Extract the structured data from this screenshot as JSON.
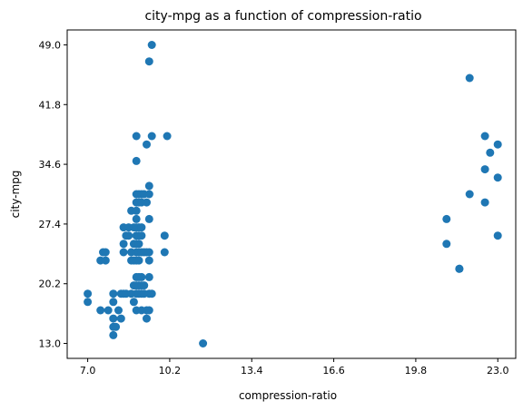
{
  "chart_data": {
    "type": "scatter",
    "title": "city-mpg as a function of compression-ratio",
    "xlabel": "compression-ratio",
    "ylabel": "city-mpg",
    "xlim": [
      6.2,
      23.7
    ],
    "ylim": [
      11.2,
      50.8
    ],
    "xticks": [
      "7.0",
      "10.2",
      "13.4",
      "16.6",
      "19.8",
      "23.0"
    ],
    "yticks": [
      "13.0",
      "20.2",
      "27.4",
      "34.6",
      "41.8",
      "49.0"
    ],
    "grid": false,
    "color": "#1f77b4",
    "points": [
      [
        7.0,
        19
      ],
      [
        7.0,
        18
      ],
      [
        7.5,
        17
      ],
      [
        7.5,
        23
      ],
      [
        7.6,
        24
      ],
      [
        7.7,
        23
      ],
      [
        7.7,
        24
      ],
      [
        7.8,
        17
      ],
      [
        8.0,
        19
      ],
      [
        8.0,
        18
      ],
      [
        8.0,
        16
      ],
      [
        8.0,
        15
      ],
      [
        8.0,
        14
      ],
      [
        8.1,
        15
      ],
      [
        8.2,
        17
      ],
      [
        8.3,
        16
      ],
      [
        8.3,
        19
      ],
      [
        8.4,
        19
      ],
      [
        8.4,
        27
      ],
      [
        8.4,
        25
      ],
      [
        8.4,
        24
      ],
      [
        8.5,
        19
      ],
      [
        8.5,
        26
      ],
      [
        8.6,
        27
      ],
      [
        8.6,
        26
      ],
      [
        8.7,
        19
      ],
      [
        8.7,
        24
      ],
      [
        8.7,
        23
      ],
      [
        8.7,
        29
      ],
      [
        8.8,
        23
      ],
      [
        8.8,
        27
      ],
      [
        8.8,
        25
      ],
      [
        8.8,
        20
      ],
      [
        8.8,
        18
      ],
      [
        8.9,
        31
      ],
      [
        8.9,
        30
      ],
      [
        8.9,
        38
      ],
      [
        8.9,
        35
      ],
      [
        8.9,
        29
      ],
      [
        8.9,
        28
      ],
      [
        8.9,
        27
      ],
      [
        8.9,
        26
      ],
      [
        8.9,
        25
      ],
      [
        8.9,
        24
      ],
      [
        8.9,
        23
      ],
      [
        8.9,
        21
      ],
      [
        8.9,
        20
      ],
      [
        8.9,
        19
      ],
      [
        8.9,
        17
      ],
      [
        9.0,
        31
      ],
      [
        9.0,
        30
      ],
      [
        9.0,
        27
      ],
      [
        9.0,
        26
      ],
      [
        9.0,
        25
      ],
      [
        9.0,
        24
      ],
      [
        9.0,
        23
      ],
      [
        9.0,
        21
      ],
      [
        9.0,
        20
      ],
      [
        9.0,
        19
      ],
      [
        9.1,
        31
      ],
      [
        9.1,
        30
      ],
      [
        9.1,
        27
      ],
      [
        9.1,
        26
      ],
      [
        9.1,
        24
      ],
      [
        9.1,
        21
      ],
      [
        9.1,
        20
      ],
      [
        9.1,
        19
      ],
      [
        9.1,
        17
      ],
      [
        9.2,
        31
      ],
      [
        9.2,
        24
      ],
      [
        9.2,
        20
      ],
      [
        9.2,
        19
      ],
      [
        9.3,
        30
      ],
      [
        9.3,
        37
      ],
      [
        9.3,
        24
      ],
      [
        9.3,
        16
      ],
      [
        9.3,
        17
      ],
      [
        9.4,
        31
      ],
      [
        9.4,
        32
      ],
      [
        9.4,
        47
      ],
      [
        9.4,
        28
      ],
      [
        9.4,
        24
      ],
      [
        9.4,
        23
      ],
      [
        9.4,
        21
      ],
      [
        9.4,
        19
      ],
      [
        9.4,
        17
      ],
      [
        9.5,
        49
      ],
      [
        9.5,
        38
      ],
      [
        9.5,
        19
      ],
      [
        10.0,
        26
      ],
      [
        10.0,
        24
      ],
      [
        10.1,
        38
      ],
      [
        11.5,
        13
      ],
      [
        21.0,
        25
      ],
      [
        21.0,
        28
      ],
      [
        21.5,
        22
      ],
      [
        21.5,
        22
      ],
      [
        21.9,
        45
      ],
      [
        21.9,
        31
      ],
      [
        22.5,
        38
      ],
      [
        22.5,
        34
      ],
      [
        22.5,
        30
      ],
      [
        22.7,
        36
      ],
      [
        23.0,
        37
      ],
      [
        23.0,
        33
      ],
      [
        23.0,
        26
      ]
    ]
  }
}
